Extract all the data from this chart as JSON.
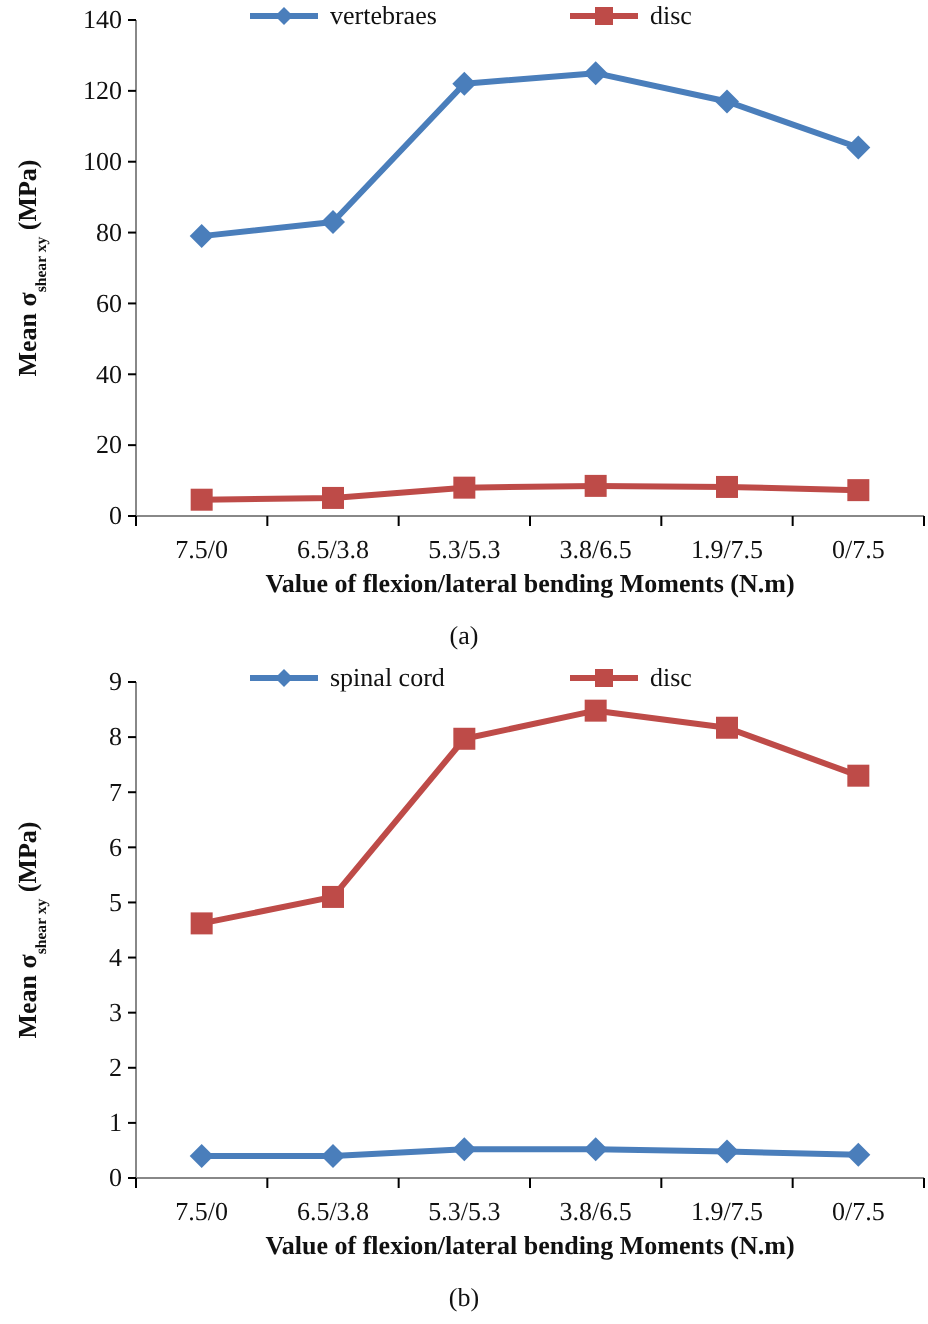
{
  "chart_data": [
    {
      "type": "line",
      "categories": [
        "7.5/0",
        "6.5/3.8",
        "5.3/5.3",
        "3.8/6.5",
        "1.9/7.5",
        "0/7.5"
      ],
      "series": [
        {
          "name": "vertebraes",
          "color": "#4a7ebb",
          "marker": "diamond",
          "values": [
            79,
            83,
            122,
            125,
            117,
            104
          ]
        },
        {
          "name": "disc",
          "color": "#be4b48",
          "marker": "square",
          "values": [
            4.6,
            5.1,
            8.0,
            8.5,
            8.2,
            7.3
          ]
        }
      ],
      "xlabel": "Value of flexion/lateral bending Moments (N.m)",
      "ylabel": "Mean σ$_{shear xy}$ (MPa)",
      "ylim": [
        0,
        140
      ],
      "yticks": [
        0,
        20,
        40,
        60,
        80,
        100,
        120,
        140
      ],
      "grid": false,
      "legend": "top",
      "annotations": [
        "(a)"
      ]
    },
    {
      "type": "line",
      "categories": [
        "7.5/0",
        "6.5/3.8",
        "5.3/5.3",
        "3.8/6.5",
        "1.9/7.5",
        "0/7.5"
      ],
      "series": [
        {
          "name": "spinal cord",
          "color": "#4a7ebb",
          "marker": "diamond",
          "values": [
            0.4,
            0.4,
            0.52,
            0.52,
            0.48,
            0.42
          ]
        },
        {
          "name": "disc",
          "color": "#be4b48",
          "marker": "square",
          "values": [
            4.62,
            5.1,
            7.97,
            8.48,
            8.17,
            7.3
          ]
        }
      ],
      "xlabel": "Value of flexion/lateral bending Moments (N.m)",
      "ylabel": "Mean σ$_{shear xy}$ (MPa)",
      "ylim": [
        0,
        9
      ],
      "yticks": [
        0,
        1,
        2,
        3,
        4,
        5,
        6,
        7,
        8,
        9
      ],
      "grid": false,
      "legend": "top",
      "annotations": [
        "(b)"
      ]
    }
  ]
}
